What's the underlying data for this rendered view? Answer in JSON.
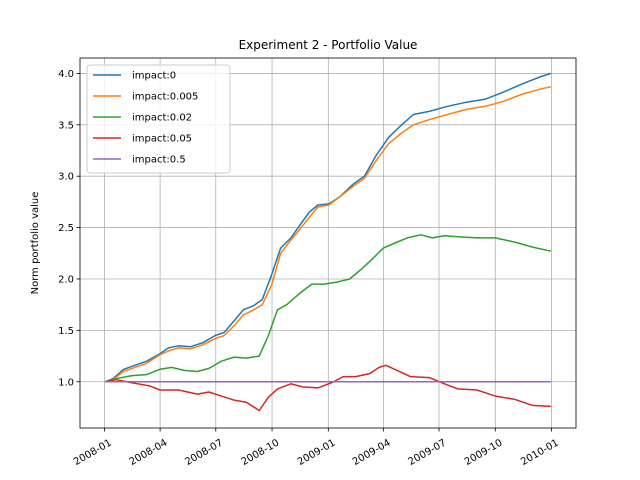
{
  "chart_data": {
    "type": "line",
    "title": "Experiment 2 - Portfolio Value",
    "xlabel": "",
    "ylabel": "Norm portfolio value",
    "xlim": [
      "2007-11-22",
      "2010-02-10"
    ],
    "ylim": [
      0.55,
      4.15
    ],
    "x_ticks": [
      "2008-01",
      "2008-04",
      "2008-07",
      "2008-10",
      "2009-01",
      "2009-04",
      "2009-07",
      "2009-10",
      "2010-01"
    ],
    "y_ticks": [
      "1.0",
      "1.5",
      "2.0",
      "2.5",
      "3.0",
      "3.5",
      "4.0"
    ],
    "y_tick_values": [
      1.0,
      1.5,
      2.0,
      2.5,
      3.0,
      3.5,
      4.0
    ],
    "grid": true,
    "legend_position": "upper-left",
    "series": [
      {
        "name": "impact:0",
        "color": "#1f77b4",
        "points": [
          [
            "2008-01-02",
            1.0
          ],
          [
            "2008-01-15",
            1.03
          ],
          [
            "2008-02-01",
            1.12
          ],
          [
            "2008-02-20",
            1.16
          ],
          [
            "2008-03-10",
            1.2
          ],
          [
            "2008-03-31",
            1.27
          ],
          [
            "2008-04-15",
            1.33
          ],
          [
            "2008-05-01",
            1.35
          ],
          [
            "2008-05-20",
            1.34
          ],
          [
            "2008-06-10",
            1.38
          ],
          [
            "2008-06-30",
            1.45
          ],
          [
            "2008-07-15",
            1.48
          ],
          [
            "2008-08-01",
            1.6
          ],
          [
            "2008-08-15",
            1.7
          ],
          [
            "2008-09-01",
            1.74
          ],
          [
            "2008-09-15",
            1.8
          ],
          [
            "2008-10-01",
            2.05
          ],
          [
            "2008-10-15",
            2.3
          ],
          [
            "2008-11-01",
            2.4
          ],
          [
            "2008-11-15",
            2.52
          ],
          [
            "2008-12-01",
            2.65
          ],
          [
            "2008-12-15",
            2.72
          ],
          [
            "2009-01-02",
            2.73
          ],
          [
            "2009-01-20",
            2.8
          ],
          [
            "2009-02-10",
            2.92
          ],
          [
            "2009-03-01",
            3.0
          ],
          [
            "2009-03-20",
            3.2
          ],
          [
            "2009-04-10",
            3.38
          ],
          [
            "2009-05-01",
            3.5
          ],
          [
            "2009-05-20",
            3.6
          ],
          [
            "2009-06-15",
            3.63
          ],
          [
            "2009-07-15",
            3.68
          ],
          [
            "2009-08-15",
            3.72
          ],
          [
            "2009-09-15",
            3.75
          ],
          [
            "2009-10-15",
            3.82
          ],
          [
            "2009-11-15",
            3.9
          ],
          [
            "2009-12-15",
            3.97
          ],
          [
            "2009-12-31",
            4.0
          ]
        ]
      },
      {
        "name": "impact:0.005",
        "color": "#ff7f0e",
        "points": [
          [
            "2008-01-02",
            1.0
          ],
          [
            "2008-01-15",
            1.02
          ],
          [
            "2008-02-01",
            1.1
          ],
          [
            "2008-02-20",
            1.14
          ],
          [
            "2008-03-10",
            1.18
          ],
          [
            "2008-03-31",
            1.26
          ],
          [
            "2008-04-15",
            1.3
          ],
          [
            "2008-05-01",
            1.33
          ],
          [
            "2008-05-20",
            1.32
          ],
          [
            "2008-06-10",
            1.36
          ],
          [
            "2008-06-30",
            1.42
          ],
          [
            "2008-07-15",
            1.45
          ],
          [
            "2008-08-01",
            1.55
          ],
          [
            "2008-08-15",
            1.65
          ],
          [
            "2008-09-01",
            1.7
          ],
          [
            "2008-09-15",
            1.75
          ],
          [
            "2008-10-01",
            1.95
          ],
          [
            "2008-10-15",
            2.25
          ],
          [
            "2008-11-01",
            2.38
          ],
          [
            "2008-11-15",
            2.48
          ],
          [
            "2008-12-01",
            2.6
          ],
          [
            "2008-12-15",
            2.7
          ],
          [
            "2009-01-02",
            2.72
          ],
          [
            "2009-01-20",
            2.8
          ],
          [
            "2009-02-10",
            2.9
          ],
          [
            "2009-03-01",
            2.98
          ],
          [
            "2009-03-20",
            3.15
          ],
          [
            "2009-04-10",
            3.32
          ],
          [
            "2009-05-01",
            3.42
          ],
          [
            "2009-05-20",
            3.5
          ],
          [
            "2009-06-15",
            3.55
          ],
          [
            "2009-07-15",
            3.6
          ],
          [
            "2009-08-15",
            3.65
          ],
          [
            "2009-09-15",
            3.68
          ],
          [
            "2009-10-15",
            3.73
          ],
          [
            "2009-11-15",
            3.8
          ],
          [
            "2009-12-15",
            3.85
          ],
          [
            "2009-12-31",
            3.87
          ]
        ]
      },
      {
        "name": "impact:0.02",
        "color": "#2ca02c",
        "points": [
          [
            "2008-01-02",
            1.0
          ],
          [
            "2008-01-20",
            1.03
          ],
          [
            "2008-02-15",
            1.06
          ],
          [
            "2008-03-10",
            1.07
          ],
          [
            "2008-03-31",
            1.12
          ],
          [
            "2008-04-20",
            1.14
          ],
          [
            "2008-05-10",
            1.11
          ],
          [
            "2008-06-01",
            1.1
          ],
          [
            "2008-06-20",
            1.13
          ],
          [
            "2008-07-10",
            1.2
          ],
          [
            "2008-07-31",
            1.24
          ],
          [
            "2008-08-20",
            1.23
          ],
          [
            "2008-09-10",
            1.25
          ],
          [
            "2008-09-25",
            1.45
          ],
          [
            "2008-10-10",
            1.7
          ],
          [
            "2008-10-25",
            1.75
          ],
          [
            "2008-11-15",
            1.86
          ],
          [
            "2008-12-05",
            1.95
          ],
          [
            "2008-12-25",
            1.95
          ],
          [
            "2009-01-15",
            1.97
          ],
          [
            "2009-02-05",
            2.0
          ],
          [
            "2009-02-25",
            2.1
          ],
          [
            "2009-03-15",
            2.2
          ],
          [
            "2009-04-01",
            2.3
          ],
          [
            "2009-04-20",
            2.35
          ],
          [
            "2009-05-10",
            2.4
          ],
          [
            "2009-06-01",
            2.43
          ],
          [
            "2009-06-20",
            2.4
          ],
          [
            "2009-07-10",
            2.42
          ],
          [
            "2009-08-01",
            2.41
          ],
          [
            "2009-09-01",
            2.4
          ],
          [
            "2009-10-01",
            2.4
          ],
          [
            "2009-11-01",
            2.36
          ],
          [
            "2009-12-01",
            2.31
          ],
          [
            "2009-12-31",
            2.27
          ]
        ]
      },
      {
        "name": "impact:0.05",
        "color": "#d62728",
        "points": [
          [
            "2008-01-02",
            1.0
          ],
          [
            "2008-01-20",
            1.02
          ],
          [
            "2008-02-15",
            0.99
          ],
          [
            "2008-03-15",
            0.96
          ],
          [
            "2008-04-01",
            0.92
          ],
          [
            "2008-05-01",
            0.92
          ],
          [
            "2008-06-01",
            0.88
          ],
          [
            "2008-06-20",
            0.9
          ],
          [
            "2008-07-10",
            0.86
          ],
          [
            "2008-08-01",
            0.82
          ],
          [
            "2008-08-20",
            0.8
          ],
          [
            "2008-09-10",
            0.72
          ],
          [
            "2008-09-25",
            0.85
          ],
          [
            "2008-10-10",
            0.93
          ],
          [
            "2008-11-01",
            0.98
          ],
          [
            "2008-11-20",
            0.95
          ],
          [
            "2008-12-15",
            0.94
          ],
          [
            "2009-01-10",
            1.0
          ],
          [
            "2009-01-25",
            1.05
          ],
          [
            "2009-02-15",
            1.05
          ],
          [
            "2009-03-10",
            1.08
          ],
          [
            "2009-03-25",
            1.14
          ],
          [
            "2009-04-05",
            1.16
          ],
          [
            "2009-04-20",
            1.12
          ],
          [
            "2009-05-15",
            1.05
          ],
          [
            "2009-06-15",
            1.04
          ],
          [
            "2009-07-10",
            0.98
          ],
          [
            "2009-08-01",
            0.93
          ],
          [
            "2009-09-01",
            0.92
          ],
          [
            "2009-10-01",
            0.86
          ],
          [
            "2009-11-01",
            0.83
          ],
          [
            "2009-12-01",
            0.77
          ],
          [
            "2009-12-31",
            0.76
          ]
        ]
      },
      {
        "name": "impact:0.5",
        "color": "#9467bd",
        "points": [
          [
            "2008-01-02",
            1.0
          ],
          [
            "2009-12-31",
            1.0
          ]
        ]
      }
    ]
  }
}
